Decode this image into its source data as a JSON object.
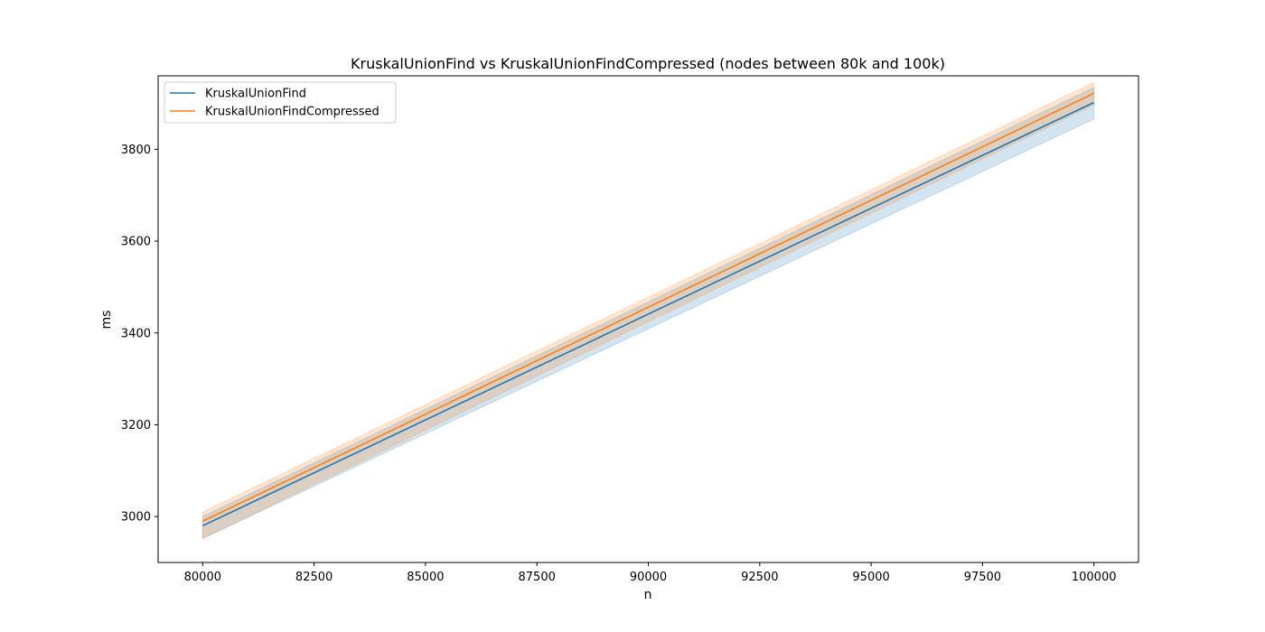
{
  "chart_data": {
    "type": "line",
    "title": "KruskalUnionFind vs KruskalUnionFindCompressed (nodes between 80k and 100k)",
    "xlabel": "n",
    "ylabel": "ms",
    "xlim": [
      79000,
      101000
    ],
    "ylim": [
      2900,
      3960
    ],
    "xticks": [
      80000,
      82500,
      85000,
      87500,
      90000,
      92500,
      95000,
      97500,
      100000
    ],
    "yticks": [
      3000,
      3200,
      3400,
      3600,
      3800
    ],
    "grid": false,
    "legend_position": "upper-left",
    "series": [
      {
        "name": "KruskalUnionFind",
        "color": "#1f77b4",
        "x": [
          80000,
          100000
        ],
        "y": [
          2980,
          3902
        ],
        "band_lower": [
          2952,
          3866
        ],
        "band_upper": [
          3000,
          3935
        ]
      },
      {
        "name": "KruskalUnionFindCompressed",
        "color": "#ff7f0e",
        "x": [
          80000,
          100000
        ],
        "y": [
          2990,
          3922
        ],
        "band_lower": [
          2952,
          3897
        ],
        "band_upper": [
          3010,
          3946
        ]
      }
    ]
  }
}
